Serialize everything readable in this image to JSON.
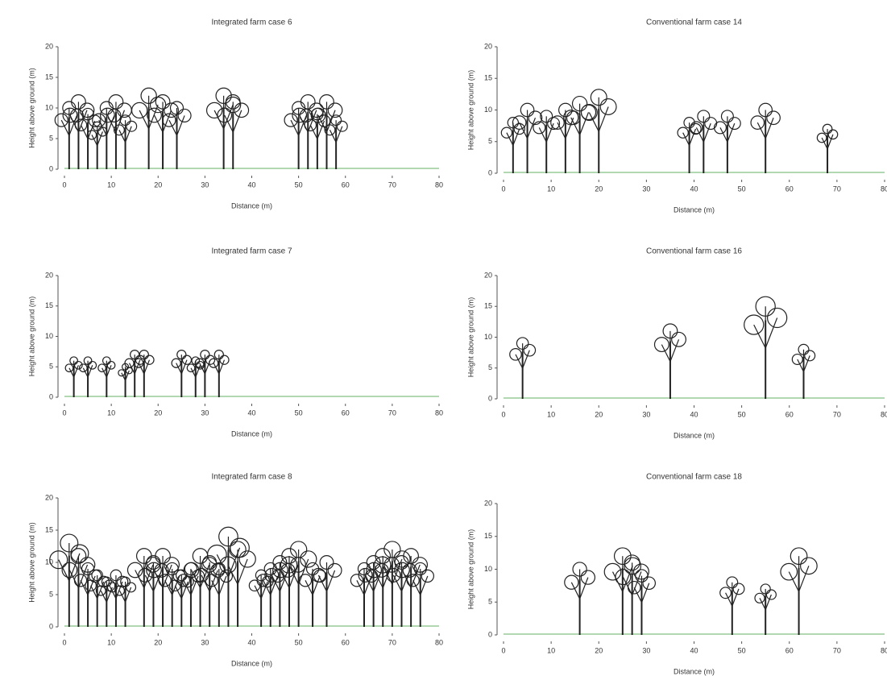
{
  "chart_data": [
    {
      "type": "tree-profile",
      "title": "Integrated farm case 6",
      "x_label": "Distance (m)",
      "y_label": "Height above ground (m)",
      "xlim": [
        0,
        80
      ],
      "ylim": [
        0,
        20
      ],
      "xticks": [
        0,
        10,
        20,
        30,
        40,
        50,
        60,
        70,
        80
      ],
      "yticks": [
        0,
        5,
        10,
        15,
        20
      ],
      "x": [
        1,
        3,
        5,
        7,
        9,
        11,
        13,
        18,
        21,
        24,
        34,
        36,
        50,
        52,
        54,
        56,
        58
      ],
      "values": [
        10,
        11,
        9,
        7,
        10,
        11,
        8,
        12,
        11,
        10,
        12,
        11,
        10,
        11,
        9,
        11,
        8
      ]
    },
    {
      "type": "tree-profile",
      "title": "Conventional farm case 14",
      "x_label": "Distance (m)",
      "y_label": "Height above ground (m)",
      "xlim": [
        0,
        80
      ],
      "ylim": [
        0,
        20
      ],
      "xticks": [
        0,
        10,
        20,
        30,
        40,
        50,
        60,
        70,
        80
      ],
      "yticks": [
        0,
        5,
        10,
        15,
        20
      ],
      "x": [
        2,
        5,
        9,
        13,
        16,
        20,
        39,
        42,
        47,
        55,
        68
      ],
      "values": [
        8,
        10,
        9,
        10,
        11,
        12,
        8,
        9,
        9,
        10,
        7
      ]
    },
    {
      "type": "tree-profile",
      "title": "Integrated farm case 7",
      "x_label": "Distance (m)",
      "y_label": "Height above ground (m)",
      "xlim": [
        0,
        80
      ],
      "ylim": [
        0,
        20
      ],
      "xticks": [
        0,
        10,
        20,
        30,
        40,
        50,
        60,
        70,
        80
      ],
      "yticks": [
        0,
        5,
        10,
        15,
        20
      ],
      "x": [
        2,
        5,
        9,
        13,
        15,
        17,
        25,
        28,
        30,
        33
      ],
      "values": [
        6,
        6,
        6,
        5,
        7,
        7,
        7,
        6,
        7,
        7
      ]
    },
    {
      "type": "tree-profile",
      "title": "Conventional farm case 16",
      "x_label": "Distance (m)",
      "y_label": "Height above ground (m)",
      "xlim": [
        0,
        80
      ],
      "ylim": [
        0,
        20
      ],
      "xticks": [
        0,
        10,
        20,
        30,
        40,
        50,
        60,
        70,
        80
      ],
      "yticks": [
        0,
        5,
        10,
        15,
        20
      ],
      "x": [
        4,
        35,
        55,
        63
      ],
      "values": [
        9,
        11,
        15,
        8
      ]
    },
    {
      "type": "tree-profile",
      "title": "Integrated farm case 8",
      "x_label": "Distance (m)",
      "y_label": "Height above ground (m)",
      "xlim": [
        0,
        80
      ],
      "ylim": [
        0,
        20
      ],
      "xticks": [
        0,
        10,
        20,
        30,
        40,
        50,
        60,
        70,
        80
      ],
      "yticks": [
        0,
        5,
        10,
        15,
        20
      ],
      "x": [
        1,
        3,
        5,
        7,
        9,
        11,
        13,
        17,
        19,
        21,
        23,
        25,
        27,
        29,
        31,
        33,
        35,
        37,
        42,
        44,
        46,
        48,
        50,
        53,
        56,
        64,
        66,
        68,
        70,
        72,
        74,
        76
      ],
      "values": [
        13,
        11,
        9,
        8,
        7,
        8,
        7,
        11,
        10,
        11,
        9,
        8,
        9,
        11,
        10,
        9,
        14,
        12,
        8,
        9,
        10,
        11,
        12,
        9,
        10,
        9,
        10,
        11,
        12,
        10,
        11,
        9
      ]
    },
    {
      "type": "tree-profile",
      "title": "Conventional farm case 18",
      "x_label": "Distance (m)",
      "y_label": "Height above ground (m)",
      "xlim": [
        0,
        80
      ],
      "ylim": [
        0,
        20
      ],
      "xticks": [
        0,
        10,
        20,
        30,
        40,
        50,
        60,
        70,
        80
      ],
      "yticks": [
        0,
        5,
        10,
        15,
        20
      ],
      "x": [
        16,
        25,
        27,
        29,
        48,
        55,
        62
      ],
      "values": [
        10,
        12,
        11,
        9,
        8,
        7,
        12
      ]
    }
  ]
}
